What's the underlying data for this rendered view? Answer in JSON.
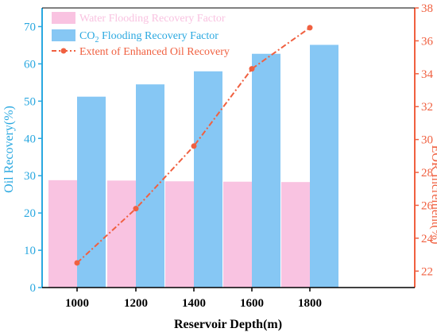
{
  "chart_data": {
    "type": "bar",
    "categories": [
      "1000",
      "1200",
      "1400",
      "1600",
      "1800"
    ],
    "series": [
      {
        "name": "Water Flooding Recovery Factor",
        "axis": "left",
        "chart": "bar",
        "values": [
          28.8,
          28.7,
          28.5,
          28.4,
          28.3
        ]
      },
      {
        "name": "CO2 Flooding Recovery Factor",
        "axis": "left",
        "chart": "bar",
        "values": [
          51.2,
          54.5,
          58.0,
          62.7,
          65.1
        ]
      },
      {
        "name": "Extent of Enhanced Oil Recovery",
        "axis": "right",
        "chart": "line",
        "values": [
          22.5,
          25.8,
          29.6,
          34.3,
          36.8
        ]
      }
    ],
    "xlabel": "Reservoir Depth(m)",
    "ylabel_left": "Oil Recovery(%)",
    "ylabel_right": "EOR Increment(%)",
    "ylim_left": [
      0,
      75
    ],
    "ylim_right": [
      21,
      38
    ],
    "yticks_left": [
      "0",
      "10",
      "20",
      "30",
      "40",
      "50",
      "60",
      "70"
    ],
    "yticks_right": [
      "22",
      "24",
      "26",
      "28",
      "30",
      "32",
      "34",
      "36",
      "38"
    ],
    "legend": {
      "placement": "top-left",
      "entries": [
        {
          "label": "Water Flooding Recovery Factor"
        },
        {
          "label_main": "CO",
          "label_sub": "2",
          "label_rest": " Flooding Recovery Factor"
        },
        {
          "label": "Extent of Enhanced Oil Recovery"
        }
      ]
    },
    "colors": {
      "water_bar": "#f9c3e1",
      "co2_bar": "#86c7f4",
      "line": "#f06040",
      "left_axis": "#2aa8e0",
      "right_axis": "#f06040"
    },
    "grid": false
  }
}
